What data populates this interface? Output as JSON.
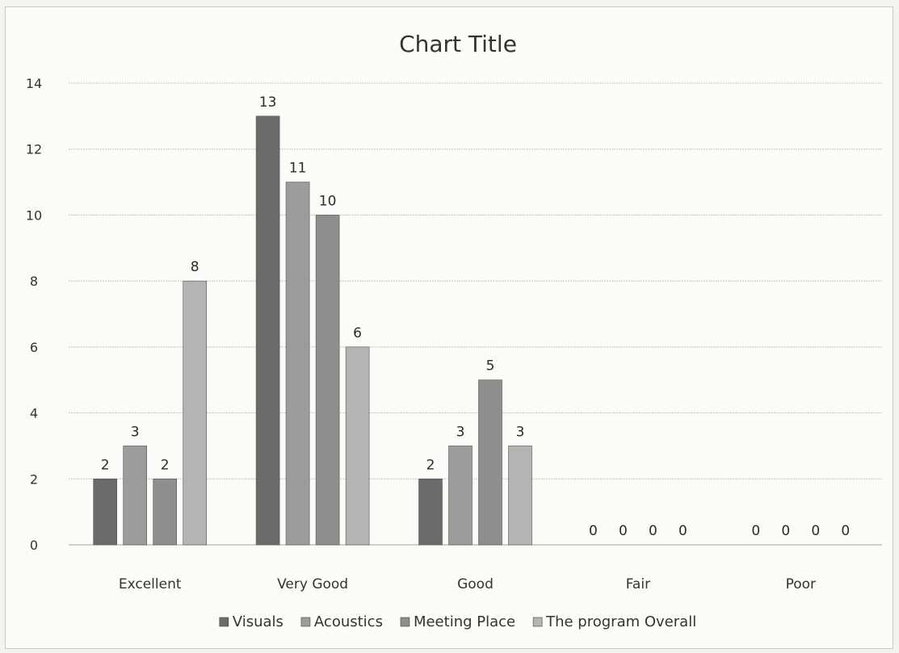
{
  "chart_data": {
    "type": "bar",
    "title": "Chart Title",
    "xlabel": "",
    "ylabel": "",
    "ylim": [
      0,
      14
    ],
    "yticks": [
      0,
      2,
      4,
      6,
      8,
      10,
      12,
      14
    ],
    "grid": true,
    "legend_position": "bottom",
    "categories": [
      "Excellent",
      "Very Good",
      "Good",
      "Fair",
      "Poor"
    ],
    "series": [
      {
        "name": "Visuals",
        "values": [
          2,
          13,
          2,
          0,
          0
        ],
        "color": "#6b6b6b"
      },
      {
        "name": "Acoustics",
        "values": [
          3,
          11,
          3,
          0,
          0
        ],
        "color": "#9c9c9c"
      },
      {
        "name": "Meeting Place",
        "values": [
          2,
          10,
          5,
          0,
          0
        ],
        "color": "#8e8e8e"
      },
      {
        "name": "The program Overall",
        "values": [
          8,
          6,
          3,
          0,
          0
        ],
        "color": "#b4b4b4"
      }
    ],
    "data_labels": true
  }
}
